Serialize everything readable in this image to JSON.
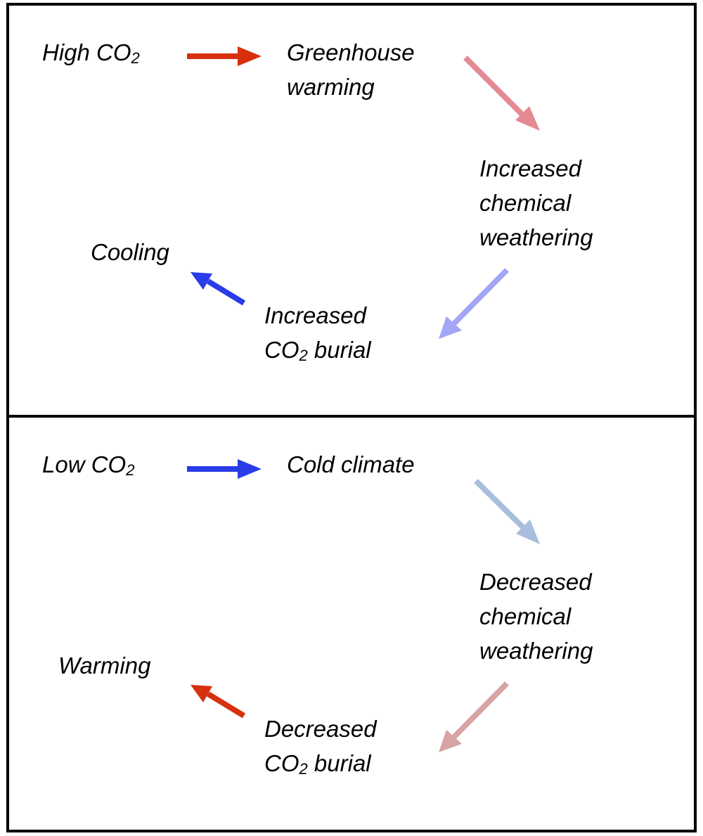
{
  "top": {
    "start": {
      "prefix": "High CO",
      "sub": "2"
    },
    "step1": [
      "Greenhouse",
      "warming"
    ],
    "step2": [
      "Increased",
      "chemical",
      "weathering"
    ],
    "step3": {
      "line1": "Increased",
      "prefix": "CO",
      "sub": "2",
      "suffix": " burial"
    },
    "end": "Cooling",
    "arrow_colors": [
      "#d6300e",
      "#e58a93",
      "#a3a6f5",
      "#2a3ce8"
    ]
  },
  "bottom": {
    "start": {
      "prefix": "Low CO",
      "sub": "2"
    },
    "step1": "Cold climate",
    "step2": [
      "Decreased",
      "chemical",
      "weathering"
    ],
    "step3": {
      "line1": "Decreased",
      "prefix": "CO",
      "sub": "2",
      "suffix": " burial"
    },
    "end": "Warming",
    "arrow_colors": [
      "#2a3ce8",
      "#a9bedd",
      "#d7a3a3",
      "#d6300e"
    ]
  }
}
